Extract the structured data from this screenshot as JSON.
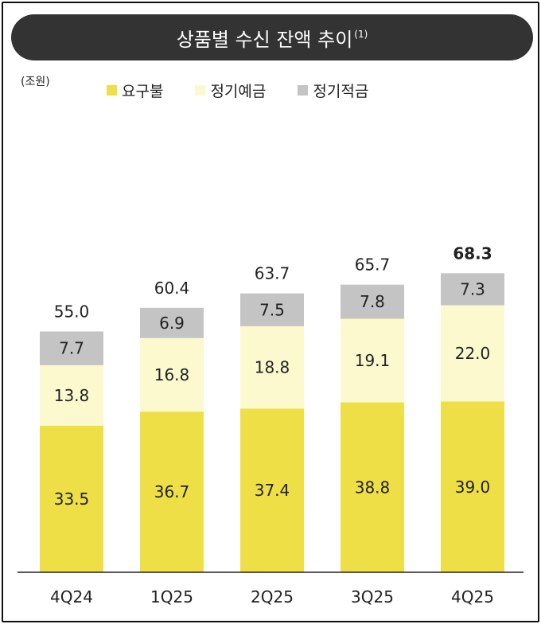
{
  "title": "상품별 수신 잔액 추이",
  "title_note": "(1)",
  "unit": "(조원)",
  "colors": {
    "title_bg": "#333333",
    "demand": "#EEDF46",
    "fixed_deposit": "#FCF9CF",
    "installment": "#C4C4C4",
    "axis": "#222222"
  },
  "chart_data": {
    "type": "bar",
    "stacked": true,
    "categories": [
      "4Q24",
      "1Q25",
      "2Q25",
      "3Q25",
      "4Q25"
    ],
    "series": [
      {
        "name": "요구불",
        "values": [
          33.5,
          36.7,
          37.4,
          38.8,
          39.0
        ]
      },
      {
        "name": "정기예금",
        "values": [
          13.8,
          16.8,
          18.8,
          19.1,
          22.0
        ]
      },
      {
        "name": "정기적금",
        "values": [
          7.7,
          6.9,
          7.5,
          7.8,
          7.3
        ]
      }
    ],
    "totals": [
      "55.0",
      "60.4",
      "63.7",
      "65.7",
      "68.3"
    ],
    "segment_labels": [
      [
        "33.5",
        "36.7",
        "37.4",
        "38.8",
        "39.0"
      ],
      [
        "13.8",
        "16.8",
        "18.8",
        "19.1",
        "22.0"
      ],
      [
        "7.7",
        "6.9",
        "7.5",
        "7.8",
        "7.3"
      ]
    ],
    "highlight_total_index": 4,
    "ylabel": "(조원)",
    "ylim": [
      0,
      75
    ],
    "legend_position": "top-left",
    "grid": false
  }
}
